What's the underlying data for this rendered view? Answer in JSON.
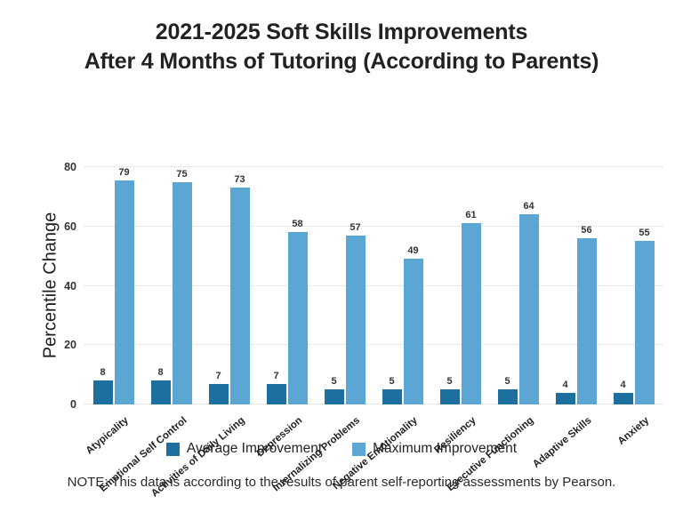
{
  "title": {
    "line1": "2021-2025 Soft Skills Improvements",
    "line2": "After 4 Months of Tutoring (According to Parents)"
  },
  "chart_data": {
    "type": "bar",
    "categories": [
      "Atypicality",
      "Emotional Self Control",
      "Activities of Daily Living",
      "Depression",
      "Internalizing Problems",
      "Negative Emotionality",
      "Resiliency",
      "Executive Functioning",
      "Adaptive Skills",
      "Anxiety"
    ],
    "series": [
      {
        "name": "Average Improvement",
        "color": "#1d6f9f",
        "values": [
          8,
          8,
          7,
          7,
          5,
          5,
          5,
          5,
          4,
          4
        ]
      },
      {
        "name": "Maximum Improvement",
        "color": "#5ba6d2",
        "values": [
          79,
          75,
          73,
          58,
          57,
          49,
          61,
          64,
          56,
          55
        ]
      }
    ],
    "title": "2021-2025 Soft Skills Improvements After 4 Months of Tutoring (According to Parents)",
    "xlabel": "",
    "ylabel": "Percentile Change",
    "ylim": [
      0,
      80
    ],
    "yticks": [
      0,
      20,
      40,
      60,
      80
    ],
    "grid": "horizontal-dotted",
    "legend_position": "bottom"
  },
  "note": "NOTE: This data is according to the results of parent self-reporting assessments by Pearson."
}
